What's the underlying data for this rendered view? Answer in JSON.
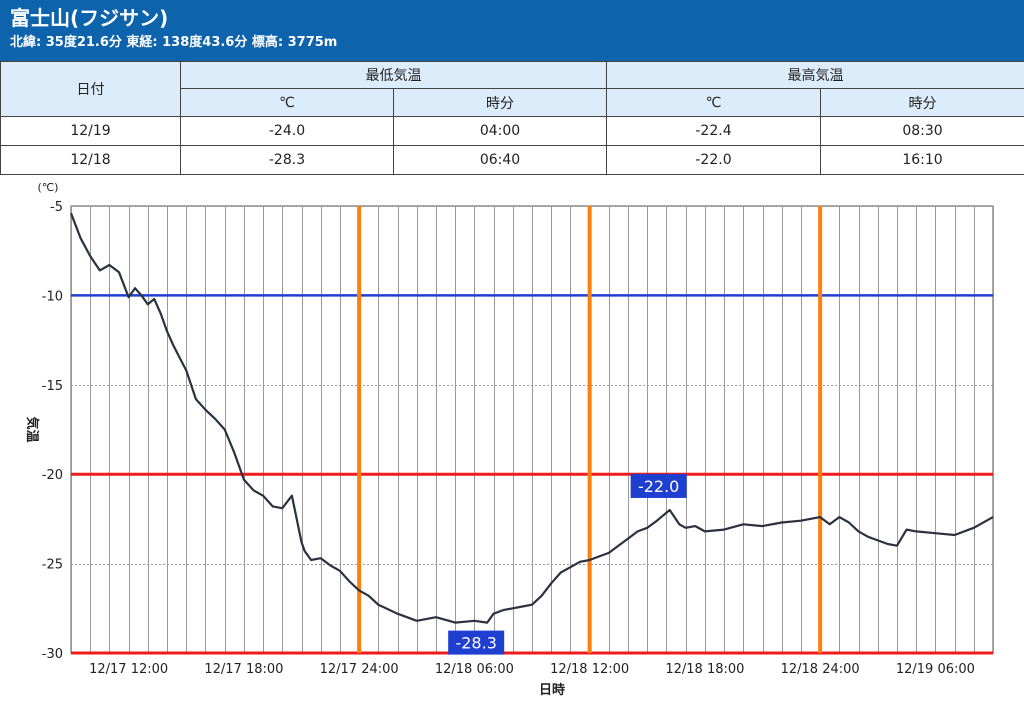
{
  "station": {
    "title": "富士山(フジサン)",
    "coords": "北緯: 35度21.6分 東経: 138度43.6分 標高: 3775m"
  },
  "table": {
    "date_header": "日付",
    "min_group": "最低気温",
    "max_group": "最高気温",
    "unit_col": "℃",
    "time_col": "時分",
    "rows": [
      {
        "date": "12/19",
        "min": "-24.0",
        "min_time": "04:00",
        "max": "-22.4",
        "max_time": "08:30"
      },
      {
        "date": "12/18",
        "min": "-28.3",
        "min_time": "06:40",
        "max": "-22.0",
        "max_time": "16:10"
      }
    ]
  },
  "chart_data": {
    "type": "line",
    "ylabel": "気温",
    "yunit": "(℃)",
    "xlabel": "日時",
    "ylim": [
      -30,
      -5
    ],
    "yticks": [
      -5,
      -10,
      -15,
      -20,
      -25,
      -30
    ],
    "xlim": [
      "12/17 09:00",
      "12/19 09:00"
    ],
    "xtick_labels": [
      "12/17 12:00",
      "12/17 18:00",
      "12/17 24:00",
      "12/18 06:00",
      "12/18 12:00",
      "12/18 18:00",
      "12/18 24:00",
      "12/19 06:00"
    ],
    "grid": "vertical hourly, horizontal every 5℃",
    "colors": {
      "line": "#2c3140",
      "blue_ref": "#1f3fd1",
      "red_ref": "#ee1c1c",
      "day_marker": "#ff7f0e",
      "label_bg": "#1f3fd1"
    },
    "reference_lines": [
      {
        "value": -10,
        "color": "blue"
      },
      {
        "value": -20,
        "color": "red"
      },
      {
        "value": -30,
        "color": "red"
      }
    ],
    "vertical_markers": [
      "12/17 24:00",
      "12/18 12:00",
      "12/18 24:00"
    ],
    "annotations": [
      {
        "label": "-22.0",
        "x": "12/18 16:10",
        "y": -22.0
      },
      {
        "label": "-28.3",
        "x": "12/18 06:40",
        "y": -28.3
      }
    ],
    "series": [
      {
        "x": [
          "12/17 09:00",
          "12/17 09:30",
          "12/17 10:00",
          "12/17 10:30",
          "12/17 11:00",
          "12/17 11:30",
          "12/17 12:00",
          "12/17 12:20",
          "12/17 12:40",
          "12/17 13:00",
          "12/17 13:20",
          "12/17 13:40",
          "12/17 14:00",
          "12/17 14:20",
          "12/17 14:40",
          "12/17 15:00",
          "12/17 15:30",
          "12/17 16:00",
          "12/17 16:30",
          "12/17 17:00",
          "12/17 17:30",
          "12/17 18:00",
          "12/17 18:30",
          "12/17 19:00",
          "12/17 19:30",
          "12/17 20:00",
          "12/17 20:30",
          "12/17 21:00",
          "12/17 21:10",
          "12/17 21:30",
          "12/17 22:00",
          "12/17 22:30",
          "12/17 23:00",
          "12/17 23:30",
          "12/18 00:00",
          "12/18 00:30",
          "12/18 01:00",
          "12/18 02:00",
          "12/18 03:00",
          "12/18 04:00",
          "12/18 05:00",
          "12/18 06:00",
          "12/18 06:40",
          "12/18 07:00",
          "12/18 07:30",
          "12/18 08:00",
          "12/18 08:30",
          "12/18 09:00",
          "12/18 09:30",
          "12/18 10:00",
          "12/18 10:30",
          "12/18 11:00",
          "12/18 11:30",
          "12/18 12:00",
          "12/18 12:30",
          "12/18 13:00",
          "12/18 13:30",
          "12/18 14:00",
          "12/18 14:30",
          "12/18 15:00",
          "12/18 15:30",
          "12/18 16:10",
          "12/18 16:40",
          "12/18 17:00",
          "12/18 17:30",
          "12/18 18:00",
          "12/18 19:00",
          "12/18 20:00",
          "12/18 21:00",
          "12/18 22:00",
          "12/18 23:00",
          "12/19 00:00",
          "12/19 00:30",
          "12/19 01:00",
          "12/19 01:30",
          "12/19 02:00",
          "12/19 02:30",
          "12/19 03:00",
          "12/19 03:30",
          "12/19 04:00",
          "12/19 04:30",
          "12/19 05:00",
          "12/19 06:00",
          "12/19 07:00",
          "12/19 08:00",
          "12/19 09:00"
        ],
        "y": [
          -5.4,
          -6.8,
          -7.8,
          -8.6,
          -8.3,
          -8.7,
          -10.1,
          -9.6,
          -10.0,
          -10.5,
          -10.2,
          -11.0,
          -12.0,
          -12.8,
          -13.5,
          -14.2,
          -15.8,
          -16.4,
          -16.9,
          -17.5,
          -18.8,
          -20.3,
          -20.9,
          -21.2,
          -21.8,
          -21.9,
          -21.2,
          -23.8,
          -24.3,
          -24.8,
          -24.7,
          -25.1,
          -25.4,
          -26.0,
          -26.5,
          -26.8,
          -27.3,
          -27.8,
          -28.2,
          -28.0,
          -28.3,
          -28.2,
          -28.3,
          -27.8,
          -27.6,
          -27.5,
          -27.4,
          -27.3,
          -26.8,
          -26.1,
          -25.5,
          -25.2,
          -24.9,
          -24.8,
          -24.6,
          -24.4,
          -24.0,
          -23.6,
          -23.2,
          -23.0,
          -22.6,
          -22.0,
          -22.8,
          -23.0,
          -22.9,
          -23.2,
          -23.1,
          -22.8,
          -22.9,
          -22.7,
          -22.6,
          -22.4,
          -22.8,
          -22.4,
          -22.7,
          -23.2,
          -23.5,
          -23.7,
          -23.9,
          -24.0,
          -23.1,
          -23.2,
          -23.3,
          -23.4,
          -23.0,
          -22.4
        ]
      }
    ]
  }
}
